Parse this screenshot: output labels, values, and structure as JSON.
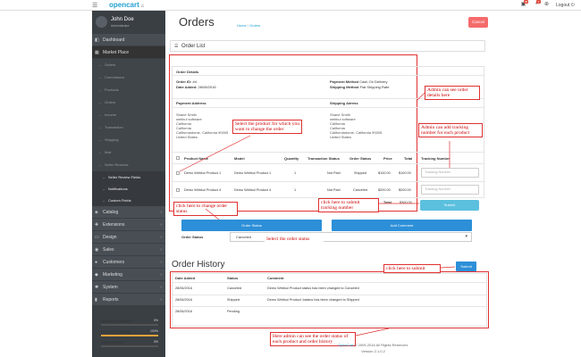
{
  "header": {
    "logo_text": "opencart",
    "logout_label": "Logout",
    "badges": {
      "orders": "35",
      "alerts": "2"
    },
    "icons": [
      "menu-icon",
      "cart-icon",
      "bell-icon",
      "life-ring-icon",
      "logout-icon"
    ]
  },
  "sidebar": {
    "user_name": "John Doe",
    "user_role": "Administrator",
    "items": [
      {
        "label": "Dashboard",
        "icon": "dashboard-icon"
      },
      {
        "label": "Market Place",
        "icon": "marketplace-icon"
      }
    ],
    "marketplace_sub": [
      "Sellers",
      "Commission",
      "Products",
      "Orders",
      "Income",
      "Transaction",
      "Shipping",
      "Mail",
      "Seller Reviews"
    ],
    "reviews_sub": [
      "Seller Review Fields",
      "Notifications",
      "Custom Fields"
    ],
    "menu": [
      {
        "label": "Catalog",
        "icon": "tag-icon"
      },
      {
        "label": "Extensions",
        "icon": "puzzle-icon"
      },
      {
        "label": "Design",
        "icon": "tv-icon"
      },
      {
        "label": "Sales",
        "icon": "cart-icon"
      },
      {
        "label": "Customers",
        "icon": "user-icon"
      },
      {
        "label": "Marketing",
        "icon": "share-icon"
      },
      {
        "label": "System",
        "icon": "cog-icon"
      },
      {
        "label": "Reports",
        "icon": "bar-chart-icon"
      }
    ],
    "stats": [
      {
        "label": "Orders Completed",
        "value": "0%",
        "fraction": 0.0,
        "color": "#e6a23c"
      },
      {
        "label": "Orders Processing",
        "value": "100%",
        "fraction": 1.0,
        "color": "#e6a23c"
      },
      {
        "label": "Other Statuses",
        "value": "0%",
        "fraction": 0.0,
        "color": "#e6a23c"
      }
    ]
  },
  "page": {
    "title": "Orders",
    "breadcrumb_home": "Home",
    "breadcrumb_sep": "/",
    "breadcrumb_current": "Orders",
    "cancel_label": "Cancel",
    "panel_title": "Order List"
  },
  "order_details": {
    "heading": "Order Details",
    "order_id_label": "Order ID:",
    "order_id": "#4",
    "date_added_label": "Date Added:",
    "date_added": "28/06/2016",
    "payment_method_label": "Payment Method",
    "payment_method": "Cash On Delivery",
    "shipping_method_label": "Shipping Method",
    "shipping_method": "Flat Shipping Rate",
    "payment_address_heading": "Payment Address",
    "shipping_address_heading": "Shipping Adress",
    "payment_address": [
      "Shane Smith",
      "webkul software",
      "California",
      "California",
      "Californiadome, California 90005",
      "United States"
    ],
    "shipping_address": [
      "Shane Smith",
      "webkul software",
      "California",
      "California",
      "Californiadome, California 90005",
      "United States"
    ]
  },
  "products_table": {
    "headers": [
      "Product Name",
      "Model",
      "Quantity",
      "Transaction Status",
      "Order Status",
      "Price",
      "Total",
      "Tracking Number"
    ],
    "rows": [
      {
        "name": "Demo Webkul Product 1",
        "model": "Demo Webkul Product 1",
        "quantity": "1",
        "transaction_status": "Not Paid",
        "order_status": "Shipped",
        "price": "$100.00",
        "total": "$100.00",
        "tracking_placeholder": "Tracking Number"
      },
      {
        "name": "Demo Webkul Product 4",
        "model": "Demo Webkul Product 4",
        "quantity": "1",
        "transaction_status": "Not Paid",
        "order_status": "Canceled",
        "price": "$200.00",
        "total": "$200.00",
        "tracking_placeholder": "Tracking Number"
      }
    ],
    "grand_total_label": "Total",
    "grand_total": "$300.00",
    "submit_label": "Submit"
  },
  "actions": {
    "order_status_button": "Order Status",
    "add_comment_button": "Add Comment",
    "order_status_label": "Order Status",
    "order_status_selected": "Canceled",
    "submit_label": "Submit"
  },
  "history": {
    "title": "Order History",
    "headers": [
      "Date Added",
      "Status",
      "Comment"
    ],
    "rows": [
      {
        "date": "28/06/2016",
        "status": "Canceled",
        "comment": "Demo Webkul Product status has been changed to Canceled"
      },
      {
        "date": "28/06/2016",
        "status": "Shipped",
        "comment": "Demo Webkul Product 1status has been changed to Shipped"
      },
      {
        "date": "28/06/2016",
        "status": "Pending",
        "comment": ""
      }
    ]
  },
  "annotations": {
    "order_details": "Admin can see order details here",
    "select_product": "Select the product for which you want to change the order",
    "tracking": "Admin can add tracking number for each product",
    "change_status": "click here to change order status",
    "submit_tracking": "click here to submit tracking number",
    "select_status": "Select the order status",
    "submit": "click here to submit",
    "history": "Here admin can see the order status of each product and order history"
  },
  "footer": {
    "link": "OpenCart",
    "copyright": "© 2009-2016 All Rights Reserved.",
    "version": "Version 2.1.0.2"
  },
  "colors": {
    "sidebar_bg": "#3a3f44",
    "accent_blue": "#2c8fd8",
    "annotation_red": "#e03030",
    "cancel_red": "#f56b6b"
  }
}
